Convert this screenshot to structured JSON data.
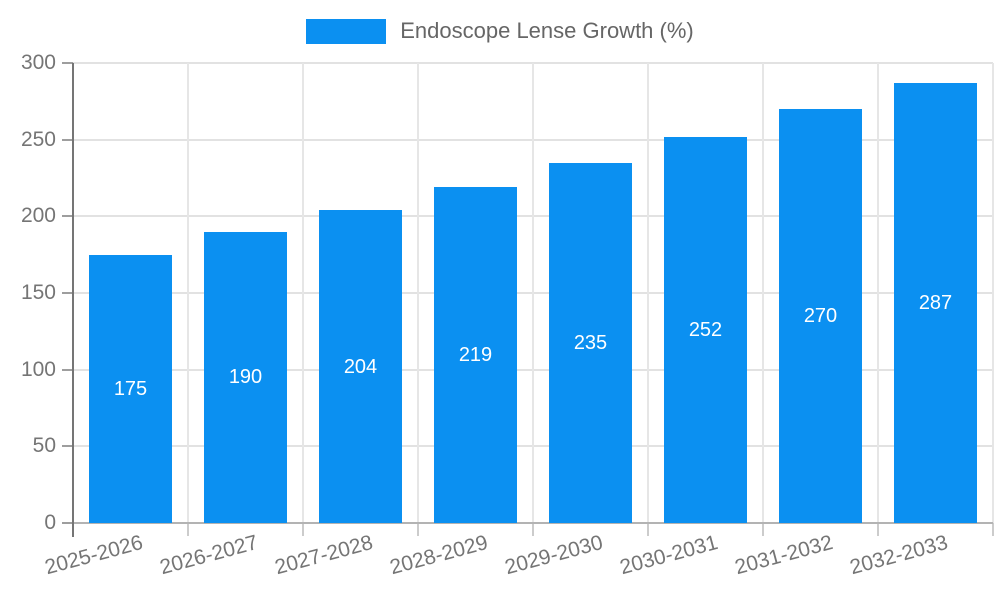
{
  "chart_data": {
    "type": "bar",
    "title": "",
    "legend": "Endoscope Lense Growth (%)",
    "legend_position": "top-center",
    "categories": [
      "2025-2026",
      "2026-2027",
      "2027-2028",
      "2028-2029",
      "2029-2030",
      "2030-2031",
      "2031-2032",
      "2032-2033"
    ],
    "values": [
      175,
      190,
      204,
      219,
      235,
      252,
      270,
      287
    ],
    "xlabel": "",
    "ylabel": "",
    "ylim": [
      0,
      300
    ],
    "yticks": [
      0,
      50,
      100,
      150,
      200,
      250,
      300
    ],
    "grid": true,
    "x_label_rotation_deg": -15,
    "colors": {
      "bar": "#0b90f1",
      "value_label": "#ffffff",
      "axis_text": "#757575",
      "legend_text": "#666666",
      "gridline": "#e2e2e2",
      "y_axis_line": "#757575",
      "x_axis_line": "#b3b3b3"
    }
  }
}
